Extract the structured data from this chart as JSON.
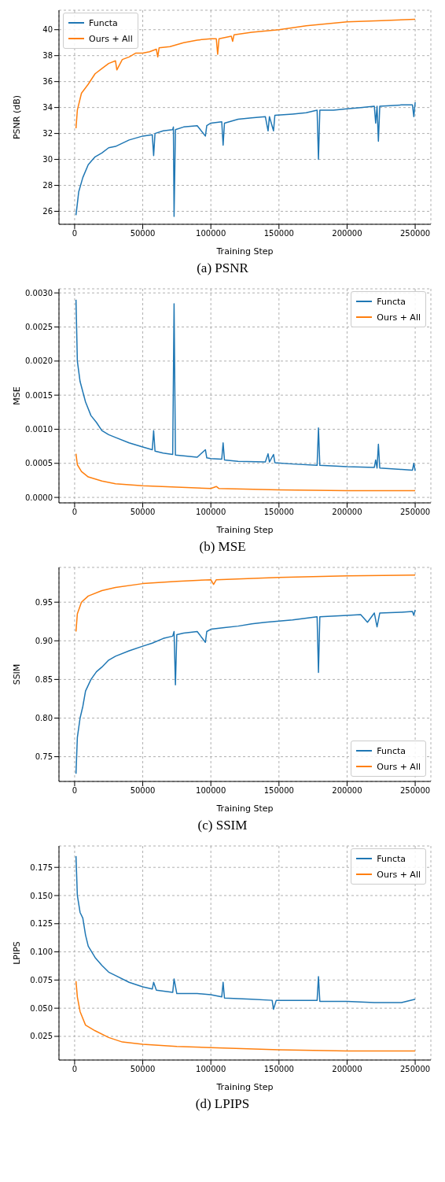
{
  "chart_data": [
    {
      "type": "line",
      "title": "(a) PSNR",
      "xlabel": "Training Step",
      "ylabel": "PSNR (dB)",
      "xlim": [
        -11500,
        261500
      ],
      "xticks": [
        0,
        50000,
        100000,
        150000,
        200000,
        250000
      ],
      "ylim": [
        25,
        41.5
      ],
      "yticks": [
        26,
        28,
        30,
        32,
        34,
        36,
        38,
        40
      ],
      "grid": true,
      "legend": "top left",
      "series": [
        {
          "name": "Functa",
          "color": "#1f77b4",
          "x": [
            1000,
            3000,
            6000,
            10000,
            15000,
            20000,
            25000,
            30000,
            40000,
            50000,
            57000,
            58000,
            59000,
            65000,
            72000,
            72500,
            73000,
            74000,
            80000,
            90000,
            96000,
            97000,
            100000,
            108000,
            109000,
            110000,
            120000,
            130000,
            140000,
            142000,
            143000,
            146000,
            147000,
            160000,
            170000,
            178000,
            179000,
            180000,
            190000,
            200000,
            210000,
            220000,
            221000,
            222000,
            223000,
            224000,
            240000,
            248000,
            249000,
            250000
          ],
          "values": [
            25.7,
            27.5,
            28.6,
            29.6,
            30.2,
            30.5,
            30.9,
            31.0,
            31.5,
            31.8,
            31.9,
            30.3,
            32.0,
            32.2,
            32.3,
            32.5,
            25.6,
            32.3,
            32.5,
            32.6,
            31.8,
            32.6,
            32.8,
            32.9,
            31.1,
            32.8,
            33.1,
            33.2,
            33.3,
            32.2,
            33.3,
            32.2,
            33.4,
            33.5,
            33.6,
            33.8,
            30.0,
            33.8,
            33.8,
            33.9,
            34.0,
            34.1,
            32.8,
            34.1,
            31.4,
            34.1,
            34.2,
            34.2,
            33.3,
            34.4
          ]
        },
        {
          "name": "Ours + All",
          "color": "#ff7f0e",
          "x": [
            1000,
            2000,
            5000,
            10000,
            15000,
            20000,
            25000,
            30000,
            31000,
            35000,
            40000,
            45000,
            50000,
            55000,
            60000,
            61000,
            62000,
            70000,
            80000,
            90000,
            100000,
            104000,
            105000,
            106000,
            115000,
            116000,
            117000,
            130000,
            150000,
            170000,
            200000,
            225000,
            250000
          ],
          "values": [
            32.4,
            33.8,
            35.1,
            35.8,
            36.6,
            37.0,
            37.4,
            37.6,
            36.9,
            37.7,
            37.9,
            38.2,
            38.2,
            38.3,
            38.5,
            37.9,
            38.6,
            38.7,
            39.0,
            39.2,
            39.3,
            39.3,
            38.1,
            39.3,
            39.5,
            39.1,
            39.6,
            39.8,
            40.0,
            40.3,
            40.6,
            40.7,
            40.8
          ]
        }
      ]
    },
    {
      "type": "line",
      "title": "(b) MSE",
      "xlabel": "Training Step",
      "ylabel": "MSE",
      "xlim": [
        -11500,
        261500
      ],
      "xticks": [
        0,
        50000,
        100000,
        150000,
        200000,
        250000
      ],
      "ylim": [
        -8e-05,
        0.00306
      ],
      "yticks": [
        {
          "value": 0,
          "label": "0.0000"
        },
        {
          "value": 0.0005,
          "label": "0.0005"
        },
        {
          "value": 0.001,
          "label": "0.0010"
        },
        {
          "value": 0.0015,
          "label": "0.0015"
        },
        {
          "value": 0.002,
          "label": "0.0020"
        },
        {
          "value": 0.0025,
          "label": "0.0025"
        },
        {
          "value": 0.003,
          "label": "0.0030"
        }
      ],
      "grid": true,
      "legend": "top right",
      "series": [
        {
          "name": "Functa",
          "color": "#1f77b4",
          "x": [
            1000,
            2000,
            4000,
            8000,
            12000,
            16000,
            20000,
            25000,
            30000,
            40000,
            50000,
            57000,
            58000,
            59000,
            65000,
            72000,
            73000,
            74000,
            80000,
            90000,
            96000,
            97000,
            100000,
            108000,
            109000,
            110000,
            120000,
            140000,
            142000,
            143000,
            146000,
            147000,
            160000,
            178000,
            179000,
            180000,
            200000,
            220000,
            221000,
            222000,
            223000,
            224000,
            240000,
            248000,
            249000,
            250000
          ],
          "values": [
            0.0029,
            0.002,
            0.0017,
            0.0014,
            0.0012,
            0.0011,
            0.00098,
            0.00092,
            0.00088,
            0.0008,
            0.00074,
            0.0007,
            0.00098,
            0.00068,
            0.00065,
            0.00063,
            0.00284,
            0.00062,
            0.00061,
            0.00059,
            0.0007,
            0.00058,
            0.00057,
            0.00056,
            0.0008,
            0.00055,
            0.00053,
            0.00052,
            0.00064,
            0.00052,
            0.00063,
            0.00051,
            0.00049,
            0.00047,
            0.00102,
            0.00047,
            0.00045,
            0.00044,
            0.00055,
            0.00043,
            0.00078,
            0.00043,
            0.00041,
            0.0004,
            0.0005,
            0.00039
          ]
        },
        {
          "name": "Ours + All",
          "color": "#ff7f0e",
          "x": [
            1000,
            2000,
            5000,
            10000,
            20000,
            30000,
            50000,
            75000,
            100000,
            104000,
            106000,
            150000,
            200000,
            250000
          ],
          "values": [
            0.00064,
            0.00048,
            0.00038,
            0.0003,
            0.00024,
            0.0002,
            0.00017,
            0.00015,
            0.00013,
            0.00016,
            0.00013,
            0.00011,
            0.0001,
            0.0001
          ]
        }
      ]
    },
    {
      "type": "line",
      "title": "(c) SSIM",
      "xlabel": "Training Step",
      "ylabel": "SSIM",
      "xlim": [
        -11500,
        261500
      ],
      "xticks": [
        0,
        50000,
        100000,
        150000,
        200000,
        250000
      ],
      "ylim": [
        0.718,
        0.995
      ],
      "yticks": [
        0.75,
        {
          "value": 0.8,
          "label": "0.80"
        },
        0.85,
        {
          "value": 0.9,
          "label": "0.90"
        },
        0.95
      ],
      "grid": true,
      "legend": "bottom right",
      "series": [
        {
          "name": "Functa",
          "color": "#1f77b4",
          "x": [
            1000,
            2000,
            4000,
            6000,
            8000,
            12000,
            16000,
            20000,
            25000,
            30000,
            40000,
            50000,
            57000,
            65000,
            72000,
            73000,
            74000,
            75000,
            80000,
            90000,
            96000,
            97000,
            100000,
            110000,
            120000,
            130000,
            140000,
            160000,
            178000,
            179000,
            180000,
            200000,
            210000,
            215000,
            220000,
            222000,
            224000,
            240000,
            248000,
            249000,
            250000
          ],
          "values": [
            0.728,
            0.775,
            0.8,
            0.815,
            0.835,
            0.85,
            0.86,
            0.866,
            0.875,
            0.88,
            0.887,
            0.893,
            0.897,
            0.903,
            0.906,
            0.912,
            0.843,
            0.908,
            0.91,
            0.912,
            0.898,
            0.912,
            0.915,
            0.917,
            0.919,
            0.922,
            0.924,
            0.927,
            0.931,
            0.859,
            0.931,
            0.933,
            0.934,
            0.924,
            0.936,
            0.918,
            0.936,
            0.937,
            0.938,
            0.933,
            0.94
          ]
        },
        {
          "name": "Ours + All",
          "color": "#ff7f0e",
          "x": [
            1000,
            2000,
            5000,
            10000,
            20000,
            30000,
            50000,
            75000,
            100000,
            102000,
            104000,
            150000,
            200000,
            250000
          ],
          "values": [
            0.912,
            0.935,
            0.95,
            0.958,
            0.965,
            0.969,
            0.974,
            0.977,
            0.979,
            0.973,
            0.979,
            0.982,
            0.984,
            0.985
          ]
        }
      ]
    },
    {
      "type": "line",
      "title": "(d) LPIPS",
      "xlabel": "Training Step",
      "ylabel": "LPIPS",
      "xlim": [
        -11500,
        261500
      ],
      "xticks": [
        0,
        50000,
        100000,
        150000,
        200000,
        250000
      ],
      "ylim": [
        0.004,
        0.194
      ],
      "yticks": [
        0.025,
        {
          "value": 0.05,
          "label": "0.050"
        },
        0.075,
        {
          "value": 0.1,
          "label": "0.100"
        },
        0.125,
        {
          "value": 0.15,
          "label": "0.150"
        },
        0.175
      ],
      "grid": true,
      "legend": "top right",
      "series": [
        {
          "name": "Functa",
          "color": "#1f77b4",
          "x": [
            1000,
            2000,
            4000,
            6000,
            8000,
            10000,
            15000,
            20000,
            25000,
            30000,
            40000,
            50000,
            57000,
            58000,
            60000,
            72000,
            73000,
            75000,
            90000,
            100000,
            108000,
            109000,
            110000,
            130000,
            145000,
            146000,
            148000,
            160000,
            178000,
            179000,
            180000,
            200000,
            220000,
            240000,
            250000
          ],
          "values": [
            0.185,
            0.15,
            0.135,
            0.13,
            0.115,
            0.105,
            0.095,
            0.088,
            0.082,
            0.079,
            0.073,
            0.069,
            0.067,
            0.073,
            0.066,
            0.064,
            0.076,
            0.063,
            0.063,
            0.062,
            0.06,
            0.073,
            0.059,
            0.058,
            0.057,
            0.049,
            0.057,
            0.057,
            0.057,
            0.078,
            0.056,
            0.056,
            0.055,
            0.055,
            0.058
          ]
        },
        {
          "name": "Ours + All",
          "color": "#ff7f0e",
          "x": [
            1000,
            2000,
            4000,
            8000,
            15000,
            25000,
            35000,
            50000,
            75000,
            100000,
            150000,
            200000,
            250000
          ],
          "values": [
            0.074,
            0.06,
            0.047,
            0.035,
            0.03,
            0.024,
            0.02,
            0.018,
            0.016,
            0.015,
            0.013,
            0.012,
            0.012
          ]
        }
      ]
    }
  ]
}
